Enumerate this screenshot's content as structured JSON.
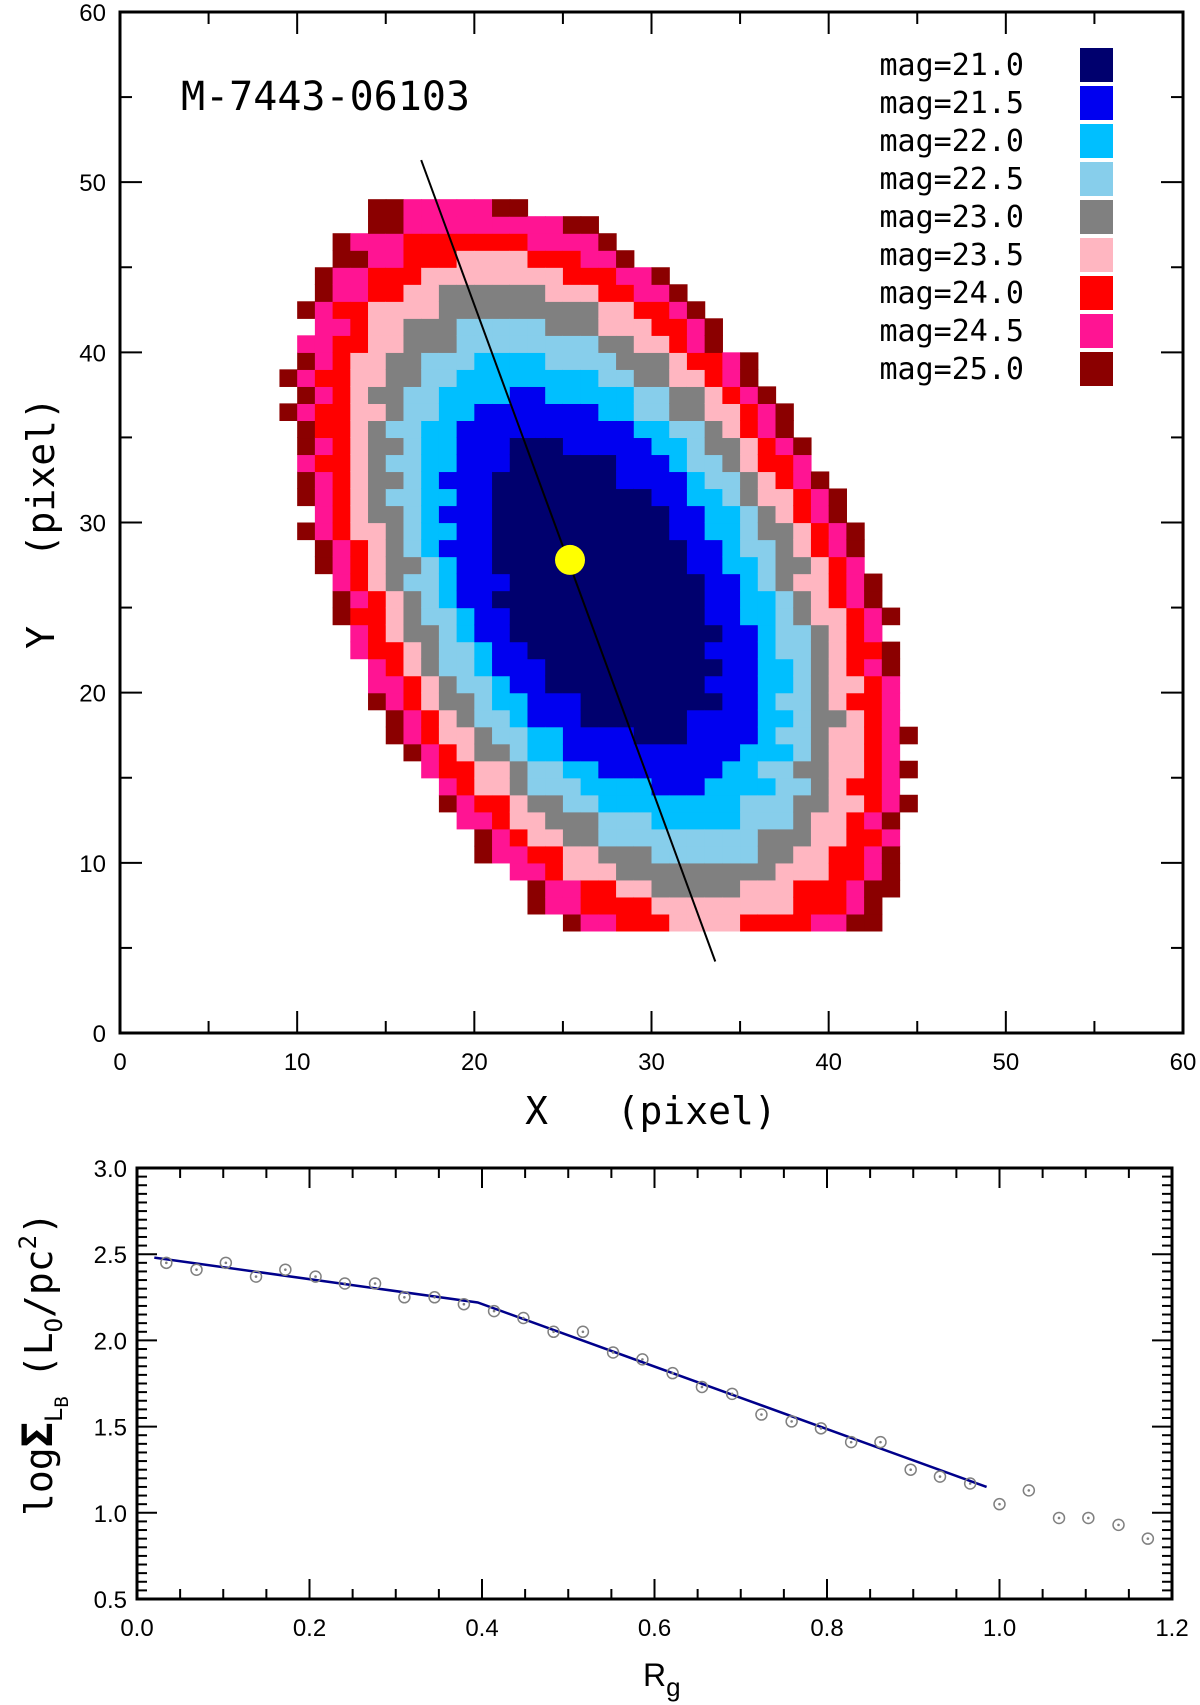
{
  "chart_data": [
    {
      "type": "heatmap",
      "title": "M-7443-06103",
      "xlabel": "X   (pixel)",
      "ylabel": "Y   (pixel)",
      "xlim": [
        0,
        60
      ],
      "ylim": [
        0,
        60
      ],
      "xticks": [
        "0",
        "10",
        "20",
        "30",
        "40",
        "50",
        "60"
      ],
      "yticks": [
        "0",
        "10",
        "20",
        "30",
        "40",
        "50",
        "60"
      ],
      "legend_position": "top-right",
      "levels": [
        {
          "label": "mag=21.0",
          "mag": 21.0,
          "color": "#00006e"
        },
        {
          "label": "mag=21.5",
          "mag": 21.5,
          "color": "#0000f0"
        },
        {
          "label": "mag=22.0",
          "mag": 22.0,
          "color": "#00bfff"
        },
        {
          "label": "mag=22.5",
          "mag": 22.5,
          "color": "#87ceeb"
        },
        {
          "label": "mag=23.0",
          "mag": 23.0,
          "color": "#808080"
        },
        {
          "label": "mag=23.5",
          "mag": 23.5,
          "color": "#ffb6c1"
        },
        {
          "label": "mag=24.0",
          "mag": 24.0,
          "color": "#ff0000"
        },
        {
          "label": "mag=24.5",
          "mag": 24.5,
          "color": "#ff1493"
        },
        {
          "label": "mag=25.0",
          "mag": 25.0,
          "color": "#8b0000"
        }
      ],
      "isophote_model": {
        "center": [
          27.2,
          26.0
        ],
        "position_angle_deg": 28,
        "axis_ratio": 0.56,
        "boundary_semi_major_axis": [
          9.4,
          13.0,
          15.2,
          17.3,
          19.3,
          21.2,
          23.1,
          24.6,
          25.6
        ],
        "lower_outer_limit": 6.5
      },
      "center_marker": {
        "x": 25.4,
        "y": 27.8,
        "color": "#ffff00"
      },
      "major_axis_line": {
        "x": [
          17.0,
          33.6
        ],
        "y": [
          51.3,
          4.2
        ]
      }
    },
    {
      "type": "scatter",
      "xlabel_main": "R",
      "xlabel_sub": "g",
      "ylabel_main": "log",
      "ylabel_symbol": "Σ",
      "ylabel_sub": "L",
      "ylabel_subsub": "B",
      "ylabel_units": "(L",
      "ylabel_units_sub": "O",
      "ylabel_units_rest": "/pc",
      "ylabel_units_sup": "2",
      "ylabel_units_close": ")",
      "xlim": [
        0.0,
        1.2
      ],
      "ylim": [
        0.5,
        3.0
      ],
      "xticks": [
        "0.0",
        "0.2",
        "0.4",
        "0.6",
        "0.8",
        "1.0",
        "1.2"
      ],
      "yticks": [
        "0.5",
        "1.0",
        "1.5",
        "2.0",
        "2.5",
        "3.0"
      ],
      "points": {
        "x": [
          0.034,
          0.069,
          0.103,
          0.138,
          0.172,
          0.207,
          0.241,
          0.276,
          0.31,
          0.345,
          0.379,
          0.414,
          0.448,
          0.483,
          0.517,
          0.552,
          0.586,
          0.621,
          0.655,
          0.69,
          0.724,
          0.759,
          0.793,
          0.828,
          0.862,
          0.897,
          0.931,
          0.966,
          1.0,
          1.034,
          1.069,
          1.103,
          1.138,
          1.172
        ],
        "y": [
          2.45,
          2.41,
          2.45,
          2.37,
          2.41,
          2.37,
          2.33,
          2.33,
          2.25,
          2.25,
          2.21,
          2.17,
          2.13,
          2.05,
          2.05,
          1.93,
          1.89,
          1.81,
          1.73,
          1.69,
          1.57,
          1.53,
          1.49,
          1.41,
          1.41,
          1.25,
          1.21,
          1.17,
          1.05,
          1.13,
          0.97,
          0.97,
          0.93,
          0.85
        ],
        "marker_color": "#808080"
      },
      "fit_line": {
        "x": [
          0.02,
          0.395,
          0.985
        ],
        "y": [
          2.48,
          2.22,
          1.15
        ],
        "color": "#00008b"
      }
    }
  ]
}
